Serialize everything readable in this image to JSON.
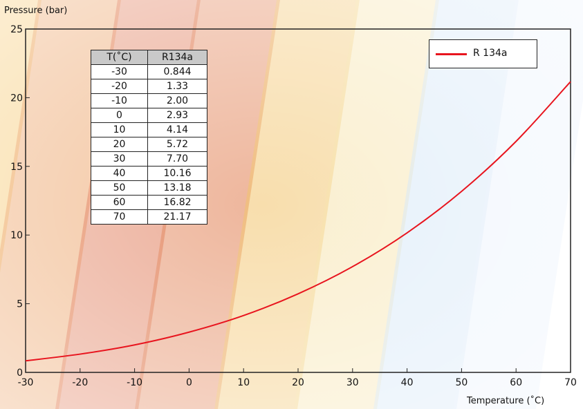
{
  "colors": {
    "curve": "#e8141e",
    "stripes": [
      "#f4c05a",
      "#e9934f",
      "#dd6b45",
      "#e07a4a",
      "#f2c26a",
      "#f6e2a8",
      "#cfe3f6",
      "#e8f1fb"
    ]
  },
  "chart_data": {
    "type": "line",
    "title": "",
    "xlabel": "Temperature (˚C)",
    "ylabel": "Pressure (bar)",
    "xlim": [
      -30,
      70
    ],
    "ylim": [
      0,
      25
    ],
    "xticks": [
      "-30",
      "-20",
      "-10",
      "0",
      "10",
      "20",
      "30",
      "40",
      "50",
      "60",
      "70"
    ],
    "yticks": [
      "0",
      "5",
      "10",
      "15",
      "20",
      "25"
    ],
    "grid": false,
    "legend_position": "top-right",
    "series": [
      {
        "name": "R 134a",
        "x": [
          -30,
          -20,
          -10,
          0,
          10,
          20,
          30,
          40,
          50,
          60,
          70
        ],
        "y": [
          0.844,
          1.33,
          2.0,
          2.93,
          4.14,
          5.72,
          7.7,
          10.16,
          13.18,
          16.82,
          21.17
        ]
      }
    ]
  },
  "table": {
    "headers": [
      "T(˚C)",
      "R134a"
    ],
    "rows": [
      [
        "-30",
        "0.844"
      ],
      [
        "-20",
        "1.33"
      ],
      [
        "-10",
        "2.00"
      ],
      [
        "0",
        "2.93"
      ],
      [
        "10",
        "4.14"
      ],
      [
        "20",
        "5.72"
      ],
      [
        "30",
        "7.70"
      ],
      [
        "40",
        "10.16"
      ],
      [
        "50",
        "13.18"
      ],
      [
        "60",
        "16.82"
      ],
      [
        "70",
        "21.17"
      ]
    ]
  }
}
